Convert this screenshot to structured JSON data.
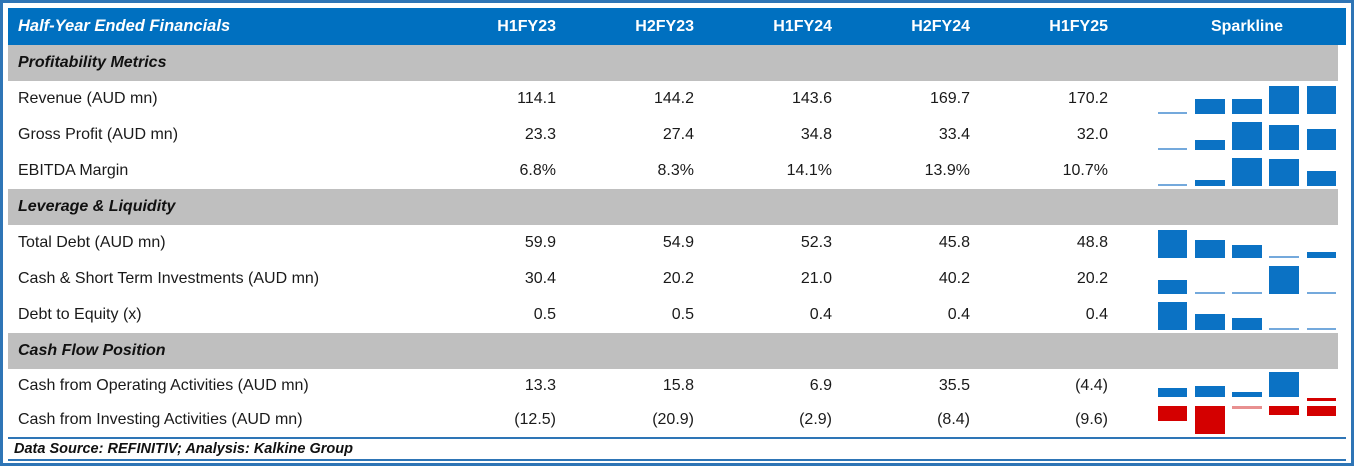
{
  "header": {
    "title": "Half-Year Ended Financials",
    "columns": [
      "H1FY23",
      "H2FY23",
      "H1FY24",
      "H2FY24",
      "H1FY25"
    ],
    "sparkline_label": "Sparkline"
  },
  "chart_data": {
    "type": "table",
    "title": "Half-Year Ended Financials",
    "columns": [
      "H1FY23",
      "H2FY23",
      "H1FY24",
      "H2FY24",
      "H1FY25"
    ],
    "sparkline_note": "each row ends with a 5-bar column sparkline; blue = positive values, red = negative values, minimum bars render as thin slivers",
    "sections": [
      {
        "label": "Profitability Metrics",
        "rows": [
          {
            "label": "Revenue (AUD mn)",
            "values": [
              "114.1",
              "144.2",
              "143.6",
              "169.7",
              "170.2"
            ],
            "spark": [
              114.1,
              144.2,
              143.6,
              169.7,
              170.2
            ]
          },
          {
            "label": "Gross Profit (AUD mn)",
            "values": [
              "23.3",
              "27.4",
              "34.8",
              "33.4",
              "32.0"
            ],
            "spark": [
              23.3,
              27.4,
              34.8,
              33.4,
              32.0
            ]
          },
          {
            "label": "EBITDA Margin",
            "values": [
              "6.8%",
              "8.3%",
              "14.1%",
              "13.9%",
              "10.7%"
            ],
            "spark": [
              6.8,
              8.3,
              14.1,
              13.9,
              10.7
            ]
          }
        ]
      },
      {
        "label": "Leverage & Liquidity",
        "rows": [
          {
            "label": "Total Debt (AUD mn)",
            "values": [
              "59.9",
              "54.9",
              "52.3",
              "45.8",
              "48.8"
            ],
            "spark": [
              59.9,
              54.9,
              52.3,
              45.8,
              48.8
            ]
          },
          {
            "label": "Cash & Short Term Investments (AUD mn)",
            "values": [
              "30.4",
              "20.2",
              "21.0",
              "40.2",
              "20.2"
            ],
            "spark": [
              30.4,
              20.2,
              21.0,
              40.2,
              20.2
            ]
          },
          {
            "label": "Debt to Equity (x)",
            "values": [
              "0.5",
              "0.5",
              "0.4",
              "0.4",
              "0.4"
            ],
            "spark": [
              0.47,
              0.44,
              0.43,
              0.4,
              0.4
            ]
          }
        ]
      },
      {
        "label": "Cash Flow Position",
        "rows": [
          {
            "label": "Cash from Operating Activities (AUD mn)",
            "values": [
              "13.3",
              "15.8",
              "6.9",
              "35.5",
              "(4.4)"
            ],
            "spark": [
              13.3,
              15.8,
              6.9,
              35.5,
              -4.4
            ]
          },
          {
            "label": "Cash from Investing Activities (AUD mn)",
            "values": [
              "(12.5)",
              "(20.9)",
              "(2.9)",
              "(8.4)",
              "(9.6)"
            ],
            "spark": [
              -12.5,
              -20.9,
              -2.9,
              -8.4,
              -9.6
            ]
          }
        ]
      }
    ]
  },
  "footer": {
    "text": "Data Source: REFINITIV; Analysis: Kalkine Group"
  },
  "colors": {
    "header_bg": "#0070C0",
    "header_text": "#FFFFFF",
    "section_bg": "#BFBFBF",
    "frame": "#2E75B6",
    "bar_positive": "#0B72C4",
    "bar_positive_min": "#74A9DC",
    "bar_negative": "#D40000",
    "bar_negative_min": "#E89090",
    "text": "#1A1A1A"
  }
}
